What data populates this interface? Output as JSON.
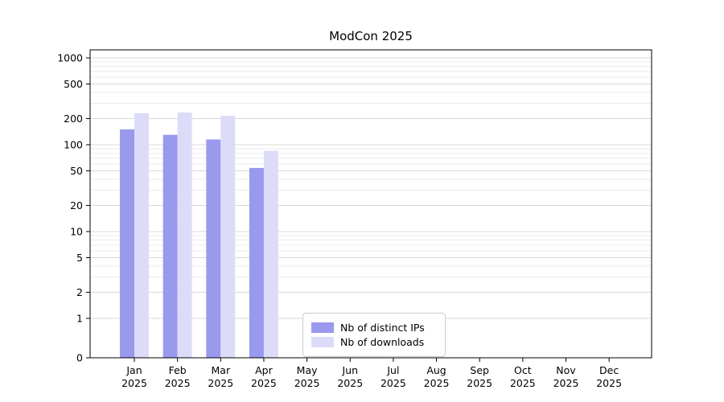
{
  "chart_data": {
    "type": "bar",
    "title": "ModCon 2025",
    "year": "2025",
    "categories": [
      "Jan",
      "Feb",
      "Mar",
      "Apr",
      "May",
      "Jun",
      "Jul",
      "Aug",
      "Sep",
      "Oct",
      "Nov",
      "Dec"
    ],
    "yscale": "symlog",
    "yticks": [
      0,
      1,
      2,
      5,
      10,
      20,
      50,
      100,
      200,
      500,
      1000
    ],
    "ylim": [
      0,
      1000
    ],
    "grid": "both",
    "legend_position": "lower center",
    "series": [
      {
        "name": "Nb of distinct IPs",
        "color": "#9999ee",
        "values": [
          150,
          130,
          115,
          54,
          0,
          0,
          0,
          0,
          0,
          0,
          0,
          0
        ]
      },
      {
        "name": "Nb of downloads",
        "color": "#dcdcf8",
        "values": [
          230,
          235,
          215,
          85,
          0,
          0,
          0,
          0,
          0,
          0,
          0,
          0
        ]
      }
    ],
    "colors": {
      "major_grid": "#d8d8d8",
      "minor_grid": "#ebebeb",
      "axis": "#000000",
      "text": "#000000"
    }
  }
}
